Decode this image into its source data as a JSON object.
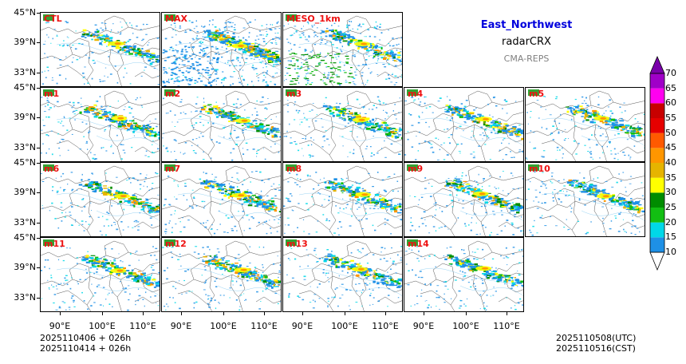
{
  "header": {
    "region": "East_Northwest",
    "product": "radarCRX",
    "model": "CMA-REPS"
  },
  "panels": [
    [
      "CTL",
      "MAX",
      "MESO_1km"
    ],
    [
      "m1",
      "m2",
      "m3",
      "m4",
      "m5"
    ],
    [
      "m6",
      "m7",
      "m8",
      "m9",
      "m10"
    ],
    [
      "m11",
      "m12",
      "m13",
      "m14"
    ]
  ],
  "axes": {
    "lat_labels": [
      "45°N",
      "39°N",
      "33°N"
    ],
    "lon_labels": [
      "90°E",
      "100°E",
      "110°E"
    ]
  },
  "footer": {
    "init_line1": "2025110406  +  026h",
    "init_line2": "2025110414  +  026h",
    "valid_utc": "2025110508(UTC)",
    "valid_cst": "2025110516(CST)"
  },
  "colorbar": {
    "levels": [
      "10",
      "15",
      "20",
      "25",
      "30",
      "35",
      "40",
      "45",
      "50",
      "55",
      "60",
      "65",
      "70"
    ],
    "colors": [
      "#1e90e6",
      "#00d8e8",
      "#12be12",
      "#008c00",
      "#ffff00",
      "#e6b400",
      "#ff9600",
      "#ff5a00",
      "#e60000",
      "#c80000",
      "#ff00f0",
      "#a000c8"
    ],
    "over_color": "#7a00aa",
    "under_color": "#ffffff"
  },
  "colors": {
    "label": "#ee1111",
    "region_title": "#0000dd",
    "subtitle": "#808080"
  }
}
